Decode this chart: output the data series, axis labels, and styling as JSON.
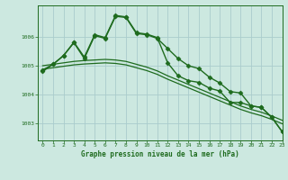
{
  "title": "Graphe pression niveau de la mer (hPa)",
  "background_color": "#cce8e0",
  "plot_bg_color": "#cce8e0",
  "grid_color": "#b0d8d0",
  "line_color": "#1e6b1e",
  "xlim": [
    -0.5,
    23
  ],
  "ylim": [
    1002.4,
    1007.1
  ],
  "yticks": [
    1003,
    1004,
    1005,
    1006
  ],
  "xticks": [
    0,
    1,
    2,
    3,
    4,
    5,
    6,
    7,
    8,
    9,
    10,
    11,
    12,
    13,
    14,
    15,
    16,
    17,
    18,
    19,
    20,
    21,
    22,
    23
  ],
  "series": [
    {
      "x": [
        0,
        1,
        2,
        3,
        4,
        5,
        6,
        7,
        8,
        9,
        10,
        11,
        12,
        13,
        14,
        15,
        16,
        17,
        18,
        19,
        20,
        21,
        22,
        23
      ],
      "y": [
        1004.85,
        1005.05,
        1005.35,
        1005.8,
        1005.25,
        1006.05,
        1005.95,
        1006.72,
        1006.68,
        1006.12,
        1006.08,
        1005.95,
        1005.6,
        1005.25,
        1005.0,
        1004.9,
        1004.6,
        1004.4,
        1004.1,
        1004.05,
        1003.6,
        1003.55,
        1003.2,
        1002.7
      ],
      "marker": "D",
      "linewidth": 1.0,
      "markersize": 2.5
    },
    {
      "x": [
        0,
        1,
        2,
        3,
        4,
        5,
        6,
        7,
        8,
        9,
        10,
        11,
        12,
        13,
        14,
        15,
        16,
        17,
        18,
        19,
        20,
        21,
        22,
        23
      ],
      "y": [
        1005.0,
        1005.05,
        1005.1,
        1005.15,
        1005.18,
        1005.2,
        1005.22,
        1005.2,
        1005.15,
        1005.05,
        1004.95,
        1004.82,
        1004.65,
        1004.5,
        1004.35,
        1004.2,
        1004.05,
        1003.9,
        1003.75,
        1003.6,
        1003.48,
        1003.38,
        1003.25,
        1003.1
      ],
      "marker": null,
      "linewidth": 0.9,
      "markersize": 0
    },
    {
      "x": [
        0,
        1,
        2,
        3,
        4,
        5,
        6,
        7,
        8,
        9,
        10,
        11,
        12,
        13,
        14,
        15,
        16,
        17,
        18,
        19,
        20,
        21,
        22,
        23
      ],
      "y": [
        1004.88,
        1004.93,
        1004.98,
        1005.03,
        1005.06,
        1005.08,
        1005.1,
        1005.08,
        1005.03,
        1004.93,
        1004.83,
        1004.7,
        1004.53,
        1004.38,
        1004.23,
        1004.08,
        1003.93,
        1003.78,
        1003.63,
        1003.48,
        1003.36,
        1003.26,
        1003.13,
        1002.98
      ],
      "marker": null,
      "linewidth": 0.9,
      "markersize": 0
    },
    {
      "x": [
        0,
        1,
        2,
        3,
        4,
        5,
        6,
        7,
        8,
        9,
        10,
        11,
        12,
        13,
        14,
        15,
        16,
        17,
        18,
        19,
        20,
        21,
        22,
        23
      ],
      "y": [
        1004.8,
        1005.05,
        1005.35,
        1005.82,
        1005.3,
        1006.08,
        1005.98,
        1006.75,
        1006.7,
        1006.15,
        1006.1,
        1005.98,
        1005.1,
        1004.65,
        1004.48,
        1004.42,
        1004.22,
        1004.12,
        1003.72,
        1003.72,
        1003.6,
        1003.55,
        1003.2,
        1002.7
      ],
      "marker": "D",
      "linewidth": 1.0,
      "markersize": 2.5
    }
  ]
}
